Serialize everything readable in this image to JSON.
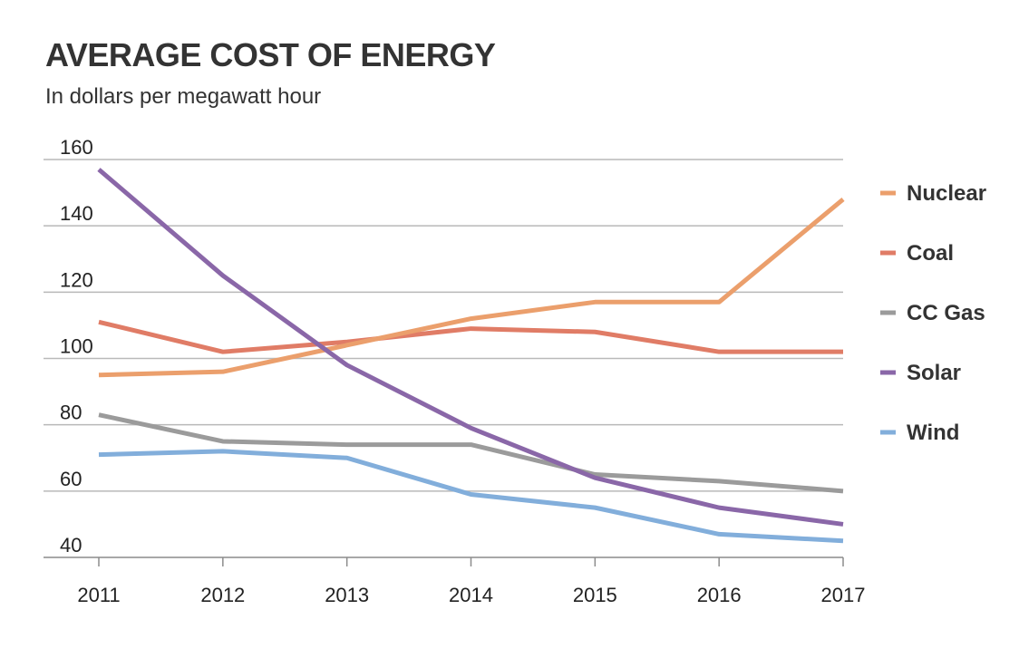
{
  "chart_data": {
    "type": "line",
    "title": "AVERAGE COST OF ENERGY",
    "subtitle": "In dollars per megawatt hour",
    "xlabel": "",
    "ylabel": "",
    "x": [
      "2011",
      "2012",
      "2013",
      "2014",
      "2015",
      "2016",
      "2017"
    ],
    "ylim": [
      40,
      160
    ],
    "yticks": [
      160,
      140,
      120,
      100,
      80,
      60,
      40
    ],
    "grid": true,
    "legend_position": "right",
    "series": [
      {
        "name": "Nuclear",
        "color": "#eb9f6c",
        "values": [
          95,
          96,
          104,
          112,
          117,
          117,
          148
        ]
      },
      {
        "name": "Coal",
        "color": "#e07c66",
        "values": [
          111,
          102,
          105,
          109,
          108,
          102,
          102
        ]
      },
      {
        "name": "CC Gas",
        "color": "#9b9b9b",
        "values": [
          83,
          75,
          74,
          74,
          65,
          63,
          60
        ]
      },
      {
        "name": "Solar",
        "color": "#8a67a8",
        "values": [
          157,
          125,
          98,
          79,
          64,
          55,
          50
        ]
      },
      {
        "name": "Wind",
        "color": "#82aedb",
        "values": [
          71,
          72,
          70,
          59,
          55,
          47,
          45
        ]
      }
    ]
  }
}
